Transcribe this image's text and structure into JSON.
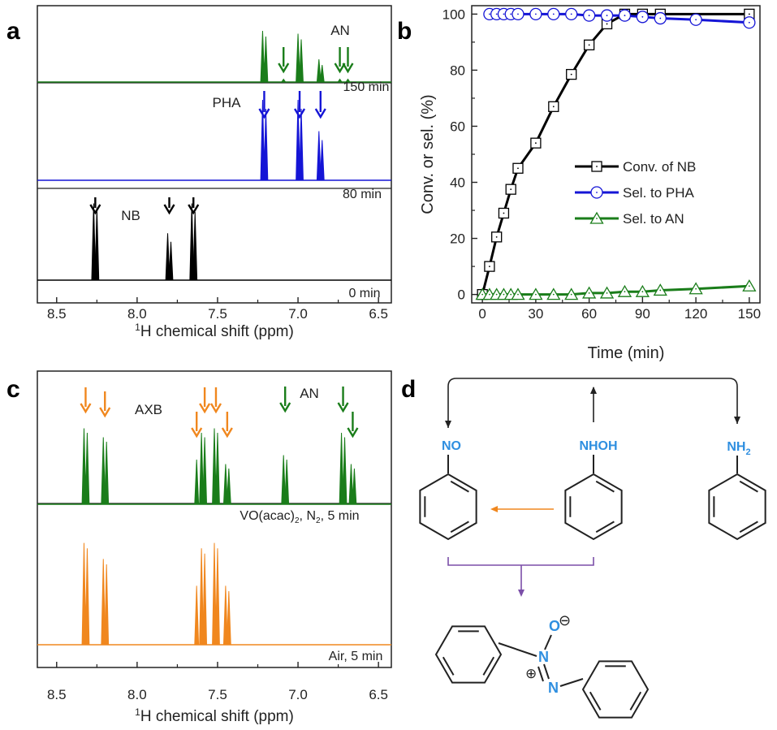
{
  "panels": {
    "a": {
      "letter": "a",
      "xlabel_sup": "1",
      "xlabel_rest": "H chemical shift (ppm)",
      "xticks": [
        "8.5",
        "8.0",
        "7.5",
        "7.0",
        "6.5"
      ],
      "traces": [
        {
          "name": "0 min",
          "color": "#000000",
          "label": "0 min",
          "peaks": [
            8.27,
            8.25,
            7.81,
            7.79,
            7.66,
            7.64
          ],
          "heights": [
            0.9,
            0.85,
            0.55,
            0.45,
            0.9,
            0.8
          ]
        },
        {
          "name": "80 min",
          "color": "#1515d6",
          "label": "80 min",
          "peaks": [
            7.22,
            7.2,
            7.0,
            6.98,
            6.87,
            6.85
          ],
          "heights": [
            0.9,
            0.8,
            0.9,
            0.8,
            0.55,
            0.45
          ]
        },
        {
          "name": "150 min",
          "color": "#1a7d1a",
          "label": "150 min",
          "peaks": [
            7.22,
            7.2,
            7.0,
            6.98,
            6.87,
            6.85,
            7.09,
            6.74,
            6.69
          ],
          "heights": [
            0.9,
            0.8,
            0.85,
            0.75,
            0.4,
            0.3,
            0.05,
            0.05,
            0.05
          ]
        }
      ],
      "annotations": [
        {
          "text": "AN",
          "color": "#222222"
        },
        {
          "text": "PHA",
          "color": "#222222"
        },
        {
          "text": "NB",
          "color": "#222222"
        }
      ]
    },
    "b": {
      "letter": "b"
    },
    "c": {
      "letter": "c",
      "xlabel_sup": "1",
      "xlabel_rest": "H chemical shift (ppm)",
      "xticks": [
        "8.5",
        "8.0",
        "7.5",
        "7.0",
        "6.5"
      ],
      "traces": [
        {
          "name": "Air, 5 min",
          "color": "#f0871e",
          "label": "Air, 5 min",
          "peaks": [
            8.33,
            8.31,
            8.21,
            8.19,
            7.63,
            7.6,
            7.58,
            7.52,
            7.5,
            7.45,
            7.43
          ],
          "heights": [
            0.95,
            0.9,
            0.8,
            0.75,
            0.55,
            0.9,
            0.85,
            0.95,
            0.9,
            0.55,
            0.5
          ]
        },
        {
          "name": "VO(acac)2, N2, 5 min",
          "color": "#1a7d1a",
          "label_parts": [
            "VO(acac)",
            "2",
            ", N",
            "2",
            ", 5 min"
          ],
          "peaks": [
            8.33,
            8.31,
            8.21,
            8.19,
            7.63,
            7.6,
            7.58,
            7.52,
            7.5,
            7.45,
            7.43,
            7.09,
            7.07,
            6.73,
            6.71,
            6.67,
            6.65
          ],
          "heights": [
            0.85,
            0.8,
            0.75,
            0.7,
            0.5,
            0.8,
            0.75,
            0.85,
            0.8,
            0.45,
            0.4,
            0.55,
            0.5,
            0.8,
            0.75,
            0.45,
            0.4
          ]
        }
      ],
      "annotations": [
        {
          "text": "AXB",
          "color": "#222222"
        },
        {
          "text": "AN",
          "color": "#222222"
        }
      ]
    },
    "d": {
      "letter": "d",
      "labels": {
        "no": "NO",
        "nhoh": "NHOH",
        "nh2_main": "NH",
        "nh2_sub": "2",
        "o": "O",
        "n_top": "N",
        "n_bottom": "N",
        "minus": "⊖",
        "plus": "⊕"
      },
      "colors": {
        "label_blue": "#2f8fe0",
        "orange": "#f0871e",
        "purple": "#7b4fa8"
      }
    }
  },
  "chart_data": {
    "type": "line",
    "xlabel": "Time (min)",
    "ylabel": "Conv. or sel. (%)",
    "xlim": [
      -6,
      156
    ],
    "ylim": [
      -3,
      103
    ],
    "xticks": [
      0,
      30,
      60,
      90,
      120,
      150
    ],
    "yticks": [
      0,
      20,
      40,
      60,
      80,
      100
    ],
    "legend_position": "center-right",
    "series": [
      {
        "name": "Conv. of NB",
        "color": "#000000",
        "marker": "square",
        "x": [
          0,
          4,
          8,
          12,
          16,
          20,
          30,
          40,
          50,
          60,
          70,
          80,
          90,
          100,
          150
        ],
        "y": [
          0,
          10,
          20.5,
          29,
          37.5,
          45,
          54,
          67,
          78.5,
          89,
          96.5,
          100,
          100,
          100,
          100
        ]
      },
      {
        "name": "Sel. to PHA",
        "color": "#1515d6",
        "marker": "circle",
        "x": [
          4,
          8,
          12,
          16,
          20,
          30,
          40,
          50,
          60,
          70,
          80,
          90,
          100,
          120,
          150
        ],
        "y": [
          100,
          100,
          100,
          100,
          100,
          100,
          100,
          100,
          99.5,
          99.5,
          99.5,
          99,
          98.5,
          98,
          97
        ]
      },
      {
        "name": "Sel. to AN",
        "color": "#1a7d1a",
        "marker": "triangle",
        "x": [
          0,
          4,
          8,
          12,
          16,
          20,
          30,
          40,
          50,
          60,
          70,
          80,
          90,
          100,
          120,
          150
        ],
        "y": [
          0,
          0,
          0,
          0,
          0,
          0,
          0,
          0,
          0,
          0.5,
          0.5,
          1,
          1,
          1.5,
          2,
          3
        ]
      }
    ]
  }
}
